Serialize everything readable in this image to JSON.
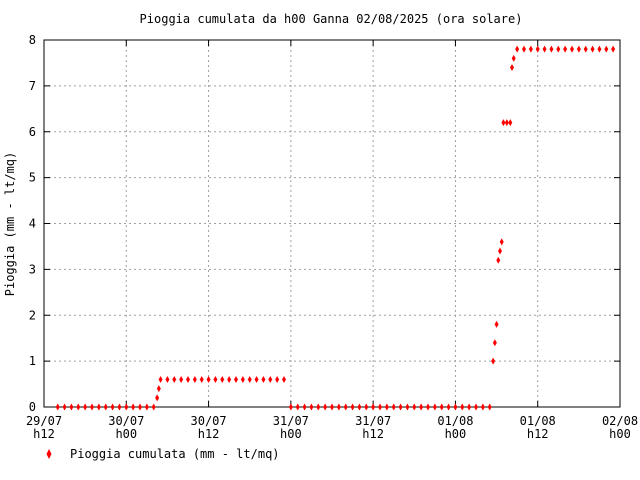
{
  "chart_data": {
    "type": "scatter",
    "title": "Pioggia cumulata da h00 Ganna 02/08/2025 (ora solare)",
    "xlabel": "",
    "ylabel": "Pioggia (mm - lt/mq)",
    "ylim": [
      0,
      8
    ],
    "yticks": [
      "0",
      "1",
      "2",
      "3",
      "4",
      "5",
      "6",
      "7",
      "8"
    ],
    "xlim": [
      "29/07 h12",
      "02/08 h00"
    ],
    "xticks": [
      {
        "date": "29/07",
        "hour": "h12"
      },
      {
        "date": "30/07",
        "hour": "h00"
      },
      {
        "date": "30/07",
        "hour": "h12"
      },
      {
        "date": "31/07",
        "hour": "h00"
      },
      {
        "date": "31/07",
        "hour": "h12"
      },
      {
        "date": "01/08",
        "hour": "h00"
      },
      {
        "date": "01/08",
        "hour": "h12"
      },
      {
        "date": "02/08",
        "hour": "h00"
      }
    ],
    "grid": true,
    "legend_position": "bottom-left",
    "series": [
      {
        "name": "Pioggia cumulata (mm - lt/mq)",
        "color": "#ff0000",
        "marker": "diamond",
        "points": [
          {
            "x": "29/07 14:00",
            "y": 0
          },
          {
            "x": "29/07 15:00",
            "y": 0
          },
          {
            "x": "29/07 16:00",
            "y": 0
          },
          {
            "x": "29/07 17:00",
            "y": 0
          },
          {
            "x": "29/07 18:00",
            "y": 0
          },
          {
            "x": "29/07 19:00",
            "y": 0
          },
          {
            "x": "29/07 20:00",
            "y": 0
          },
          {
            "x": "29/07 21:00",
            "y": 0
          },
          {
            "x": "29/07 22:00",
            "y": 0
          },
          {
            "x": "29/07 23:00",
            "y": 0
          },
          {
            "x": "30/07 00:00",
            "y": 0
          },
          {
            "x": "30/07 01:00",
            "y": 0
          },
          {
            "x": "30/07 02:00",
            "y": 0
          },
          {
            "x": "30/07 03:00",
            "y": 0
          },
          {
            "x": "30/07 04:00",
            "y": 0
          },
          {
            "x": "30/07 04:30",
            "y": 0.2
          },
          {
            "x": "30/07 04:45",
            "y": 0.4
          },
          {
            "x": "30/07 05:00",
            "y": 0.6
          },
          {
            "x": "30/07 06:00",
            "y": 0.6
          },
          {
            "x": "30/07 07:00",
            "y": 0.6
          },
          {
            "x": "30/07 08:00",
            "y": 0.6
          },
          {
            "x": "30/07 09:00",
            "y": 0.6
          },
          {
            "x": "30/07 10:00",
            "y": 0.6
          },
          {
            "x": "30/07 11:00",
            "y": 0.6
          },
          {
            "x": "30/07 12:00",
            "y": 0.6
          },
          {
            "x": "30/07 13:00",
            "y": 0.6
          },
          {
            "x": "30/07 14:00",
            "y": 0.6
          },
          {
            "x": "30/07 15:00",
            "y": 0.6
          },
          {
            "x": "30/07 16:00",
            "y": 0.6
          },
          {
            "x": "30/07 17:00",
            "y": 0.6
          },
          {
            "x": "30/07 18:00",
            "y": 0.6
          },
          {
            "x": "30/07 19:00",
            "y": 0.6
          },
          {
            "x": "30/07 20:00",
            "y": 0.6
          },
          {
            "x": "30/07 21:00",
            "y": 0.6
          },
          {
            "x": "30/07 22:00",
            "y": 0.6
          },
          {
            "x": "30/07 23:00",
            "y": 0.6
          },
          {
            "x": "31/07 00:00",
            "y": 0
          },
          {
            "x": "31/07 01:00",
            "y": 0
          },
          {
            "x": "31/07 02:00",
            "y": 0
          },
          {
            "x": "31/07 03:00",
            "y": 0
          },
          {
            "x": "31/07 04:00",
            "y": 0
          },
          {
            "x": "31/07 05:00",
            "y": 0
          },
          {
            "x": "31/07 06:00",
            "y": 0
          },
          {
            "x": "31/07 07:00",
            "y": 0
          },
          {
            "x": "31/07 08:00",
            "y": 0
          },
          {
            "x": "31/07 09:00",
            "y": 0
          },
          {
            "x": "31/07 10:00",
            "y": 0
          },
          {
            "x": "31/07 11:00",
            "y": 0
          },
          {
            "x": "31/07 12:00",
            "y": 0
          },
          {
            "x": "31/07 13:00",
            "y": 0
          },
          {
            "x": "31/07 14:00",
            "y": 0
          },
          {
            "x": "31/07 15:00",
            "y": 0
          },
          {
            "x": "31/07 16:00",
            "y": 0
          },
          {
            "x": "31/07 17:00",
            "y": 0
          },
          {
            "x": "31/07 18:00",
            "y": 0
          },
          {
            "x": "31/07 19:00",
            "y": 0
          },
          {
            "x": "31/07 20:00",
            "y": 0
          },
          {
            "x": "31/07 21:00",
            "y": 0
          },
          {
            "x": "31/07 22:00",
            "y": 0
          },
          {
            "x": "31/07 23:00",
            "y": 0
          },
          {
            "x": "01/08 00:00",
            "y": 0
          },
          {
            "x": "01/08 01:00",
            "y": 0
          },
          {
            "x": "01/08 02:00",
            "y": 0
          },
          {
            "x": "01/08 03:00",
            "y": 0
          },
          {
            "x": "01/08 04:00",
            "y": 0
          },
          {
            "x": "01/08 05:00",
            "y": 0
          },
          {
            "x": "01/08 05:30",
            "y": 1.0
          },
          {
            "x": "01/08 05:45",
            "y": 1.4
          },
          {
            "x": "01/08 06:00",
            "y": 1.8
          },
          {
            "x": "01/08 06:15",
            "y": 3.2
          },
          {
            "x": "01/08 06:30",
            "y": 3.4
          },
          {
            "x": "01/08 06:45",
            "y": 3.6
          },
          {
            "x": "01/08 07:00",
            "y": 6.2
          },
          {
            "x": "01/08 07:30",
            "y": 6.2
          },
          {
            "x": "01/08 08:00",
            "y": 6.2
          },
          {
            "x": "01/08 08:15",
            "y": 7.4
          },
          {
            "x": "01/08 08:30",
            "y": 7.6
          },
          {
            "x": "01/08 09:00",
            "y": 7.8
          },
          {
            "x": "01/08 10:00",
            "y": 7.8
          },
          {
            "x": "01/08 11:00",
            "y": 7.8
          },
          {
            "x": "01/08 12:00",
            "y": 7.8
          },
          {
            "x": "01/08 13:00",
            "y": 7.8
          },
          {
            "x": "01/08 14:00",
            "y": 7.8
          },
          {
            "x": "01/08 15:00",
            "y": 7.8
          },
          {
            "x": "01/08 16:00",
            "y": 7.8
          },
          {
            "x": "01/08 17:00",
            "y": 7.8
          },
          {
            "x": "01/08 18:00",
            "y": 7.8
          },
          {
            "x": "01/08 19:00",
            "y": 7.8
          },
          {
            "x": "01/08 20:00",
            "y": 7.8
          },
          {
            "x": "01/08 21:00",
            "y": 7.8
          },
          {
            "x": "01/08 22:00",
            "y": 7.8
          },
          {
            "x": "01/08 23:00",
            "y": 7.8
          }
        ]
      }
    ]
  }
}
